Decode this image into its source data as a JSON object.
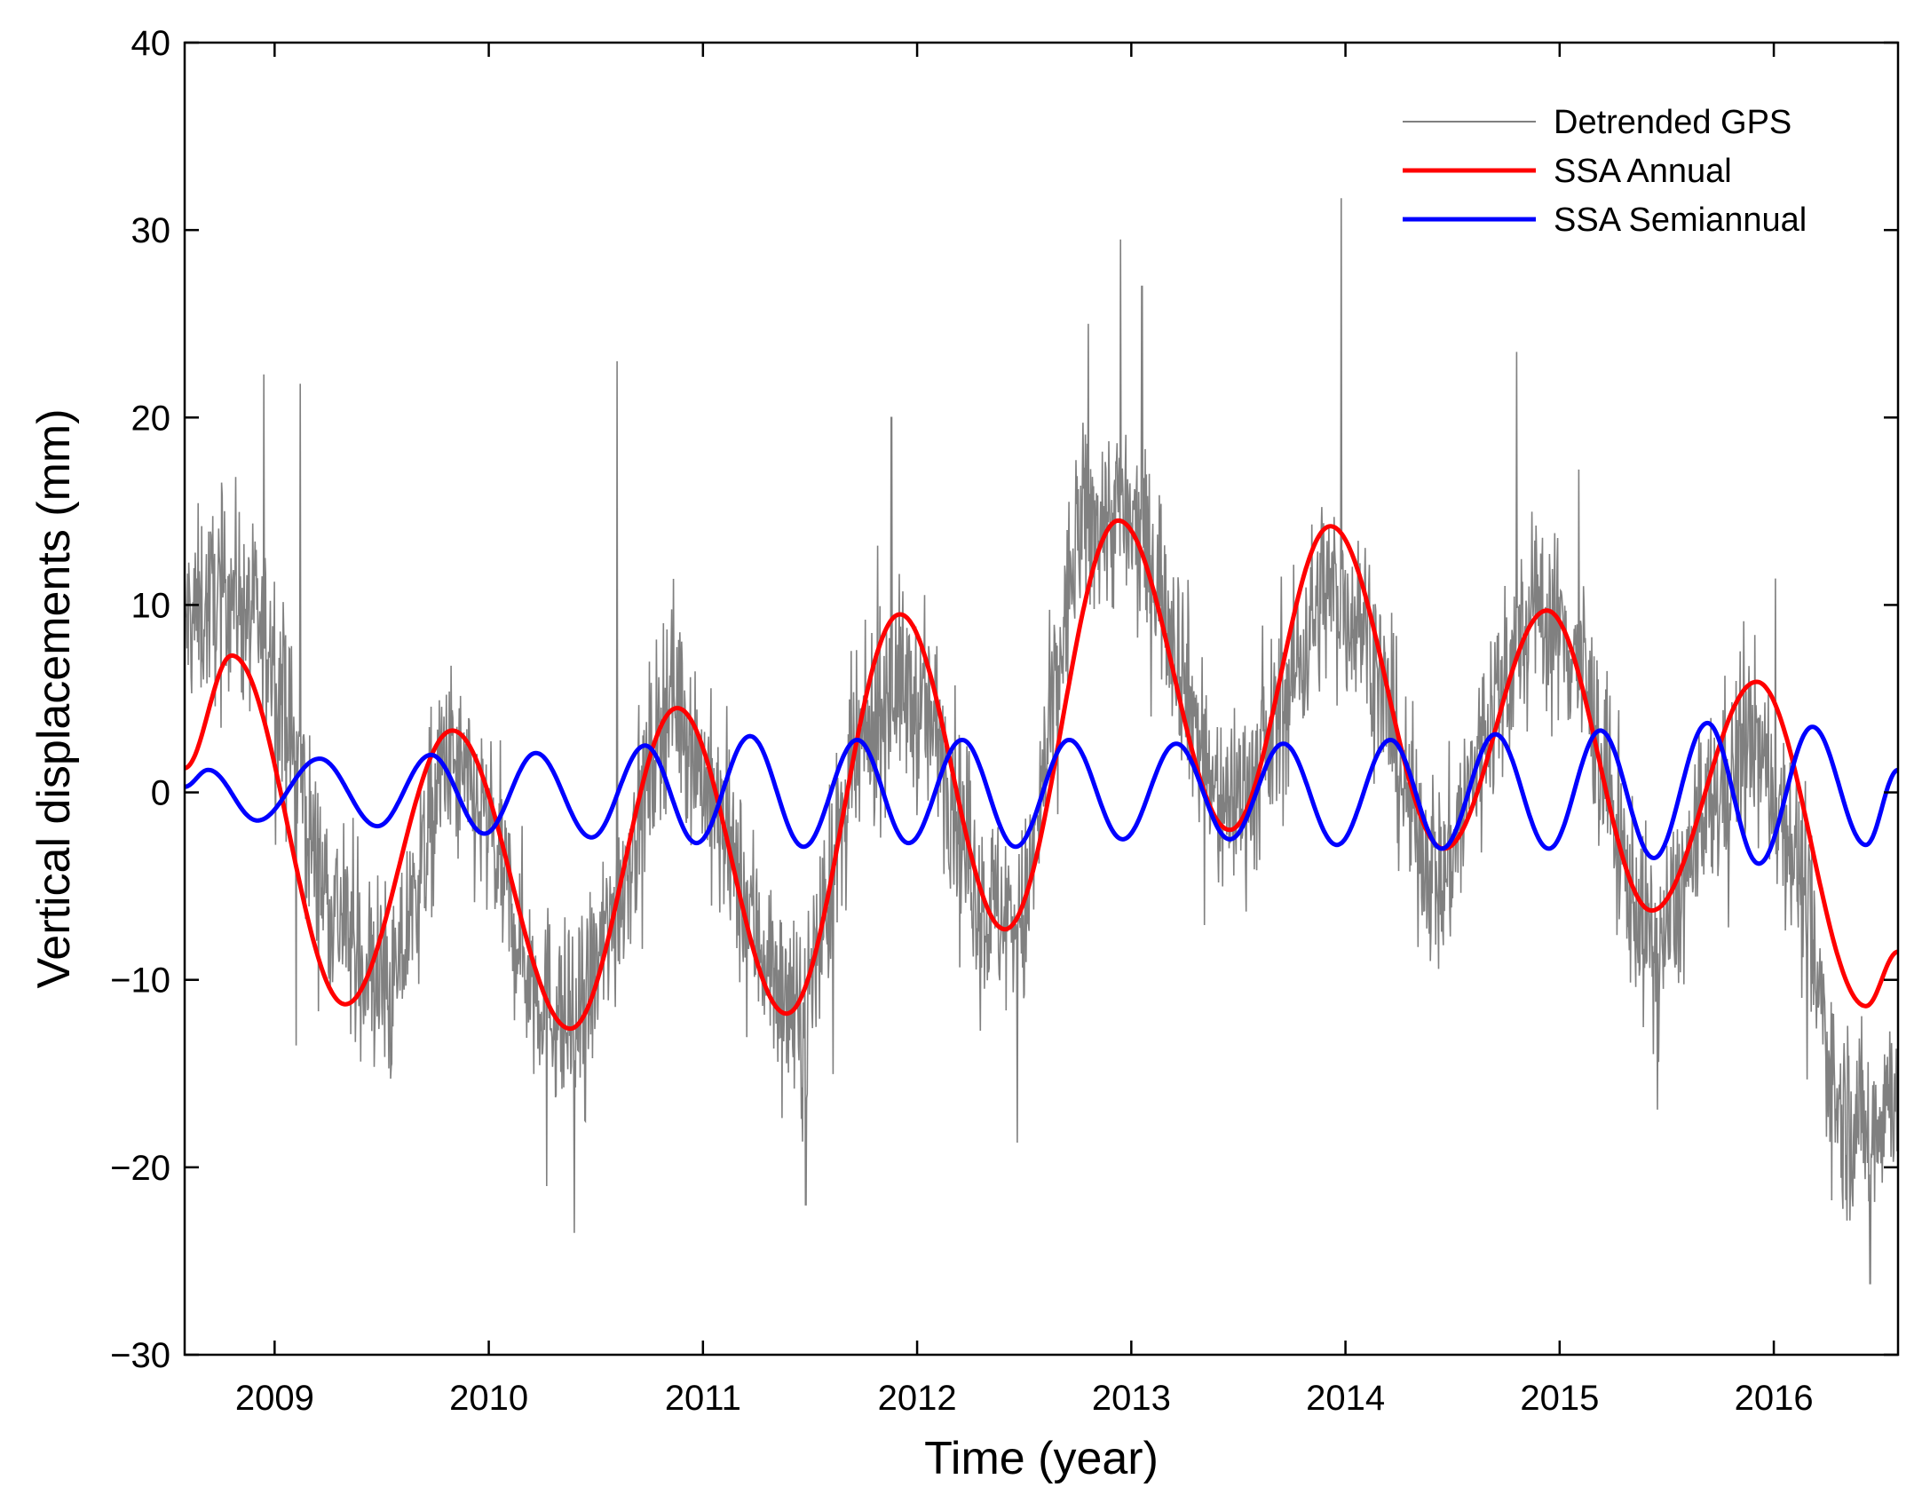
{
  "chart_data": {
    "type": "line",
    "title": "",
    "xlabel": "Time (year)",
    "ylabel": "Vertical displacements (mm)",
    "xlim": [
      2008.58,
      2016.58
    ],
    "ylim": [
      -30,
      40
    ],
    "x_ticks": [
      2009,
      2010,
      2011,
      2012,
      2013,
      2014,
      2015,
      2016
    ],
    "x_tick_labels": [
      "2009",
      "2010",
      "2011",
      "2012",
      "2013",
      "2014",
      "2015",
      "2016"
    ],
    "y_ticks": [
      -30,
      -20,
      -10,
      0,
      10,
      20,
      30,
      40
    ],
    "y_tick_labels": [
      "−30",
      "−20",
      "−10",
      "0",
      "10",
      "20",
      "30",
      "40"
    ],
    "grid": false,
    "legend_position": "top-right",
    "series": [
      {
        "name": "Detrended GPS",
        "color": "#808080",
        "style": "thin-noisy",
        "envelope_x": [
          2008.58,
          2008.8,
          2009.0,
          2009.2,
          2009.4,
          2009.55,
          2009.8,
          2010.0,
          2010.2,
          2010.4,
          2010.6,
          2010.85,
          2011.0,
          2011.2,
          2011.45,
          2011.7,
          2011.9,
          2012.1,
          2012.3,
          2012.5,
          2012.75,
          2012.95,
          2013.15,
          2013.4,
          2013.6,
          2013.9,
          2014.1,
          2014.3,
          2014.45,
          2014.7,
          2014.9,
          2015.1,
          2015.3,
          2015.45,
          2015.7,
          2015.9,
          2016.1,
          2016.3,
          2016.45,
          2016.58
        ],
        "envelope_y": [
          9,
          11,
          7,
          -4,
          -9,
          -11,
          2,
          -2,
          -10,
          -13,
          -6,
          6,
          1,
          -6,
          -13,
          1,
          6,
          3,
          -6,
          -7,
          14,
          15,
          11,
          -1,
          1,
          11,
          9,
          -1,
          -5,
          5,
          10,
          7,
          -4,
          -9,
          -1,
          3,
          -3,
          -17,
          -18,
          -15
        ],
        "spikes": [
          {
            "x": 2008.95,
            "y": 22.3
          },
          {
            "x": 2009.12,
            "y": 21.8
          },
          {
            "x": 2009.1,
            "y": -13.5
          },
          {
            "x": 2010.27,
            "y": -21
          },
          {
            "x": 2010.4,
            "y": -23.5
          },
          {
            "x": 2010.6,
            "y": 23
          },
          {
            "x": 2011.48,
            "y": -22
          },
          {
            "x": 2011.88,
            "y": 20
          },
          {
            "x": 2012.8,
            "y": 25
          },
          {
            "x": 2012.95,
            "y": 29.5
          },
          {
            "x": 2013.05,
            "y": 27
          },
          {
            "x": 2013.98,
            "y": 31.7
          },
          {
            "x": 2014.8,
            "y": 23.5
          },
          {
            "x": 2016.45,
            "y": -26.2
          }
        ]
      },
      {
        "name": "SSA Annual",
        "color": "#ff0000",
        "peaks_x": [
          2008.58,
          2008.8,
          2009.33,
          2009.83,
          2010.38,
          2010.88,
          2011.39,
          2011.92,
          2012.41,
          2012.94,
          2013.46,
          2013.93,
          2014.46,
          2014.94,
          2015.43,
          2015.92,
          2016.43,
          2016.58
        ],
        "peaks_y": [
          1.3,
          7.3,
          -11.3,
          3.3,
          -12.6,
          4.5,
          -11.8,
          9.5,
          -7.3,
          14.5,
          -2.0,
          14.2,
          -3.0,
          9.7,
          -6.3,
          5.9,
          -11.4,
          -8.5
        ]
      },
      {
        "name": "SSA Semiannual",
        "color": "#0000ff",
        "peaks_x": [
          2008.58,
          2008.69,
          2008.92,
          2009.21,
          2009.48,
          2009.73,
          2009.98,
          2010.22,
          2010.48,
          2010.73,
          2010.97,
          2011.22,
          2011.47,
          2011.72,
          2011.96,
          2012.21,
          2012.46,
          2012.71,
          2012.96,
          2013.21,
          2013.46,
          2013.71,
          2013.96,
          2014.21,
          2014.45,
          2014.7,
          2014.95,
          2015.19,
          2015.44,
          2015.69,
          2015.93,
          2016.18,
          2016.43,
          2016.58
        ],
        "peaks_y": [
          0.3,
          1.2,
          -1.5,
          1.8,
          -1.8,
          2.0,
          -2.2,
          2.1,
          -2.4,
          2.5,
          -2.7,
          3.0,
          -2.9,
          2.8,
          -2.7,
          2.8,
          -2.9,
          2.8,
          -2.5,
          2.6,
          -2.5,
          2.6,
          -2.8,
          2.8,
          -3.0,
          3.1,
          -3.0,
          3.3,
          -3.5,
          3.7,
          -3.8,
          3.5,
          -2.8,
          1.2
        ]
      }
    ]
  }
}
